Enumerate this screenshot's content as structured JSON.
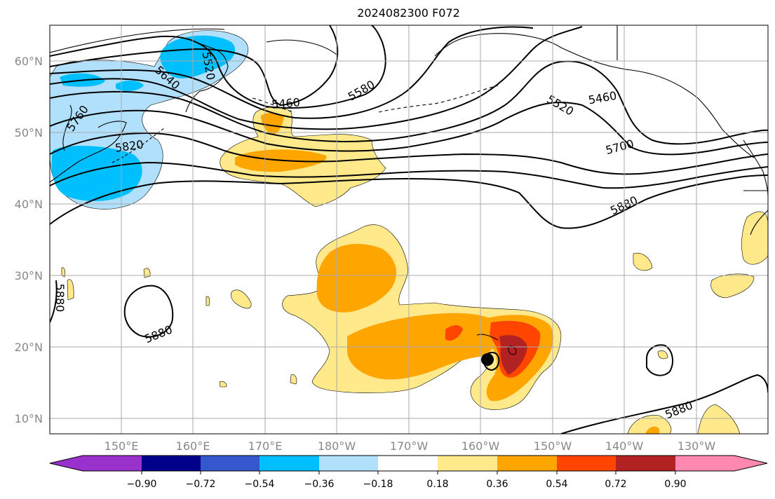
{
  "title": "2024082300 F072",
  "map": {
    "latitude_labels": [
      "60°N",
      "50°N",
      "40°N",
      "30°N",
      "20°N",
      "10°N"
    ],
    "longitude_labels": [
      "150°E",
      "160°E",
      "170°E",
      "180°W",
      "170°W",
      "160°W",
      "150°W",
      "140°W",
      "130°W"
    ],
    "contour_labels": [
      "5520",
      "5640",
      "5760",
      "5820",
      "5460",
      "5580",
      "5520",
      "5460",
      "5700",
      "5880",
      "5880",
      "5880",
      "5880"
    ],
    "grid": true,
    "colors": {
      "contour": "#000000",
      "coast": "#000000",
      "grid": "#aaaaaa"
    }
  },
  "colorbar": {
    "tick_labels": [
      "−0.90",
      "−0.72",
      "−0.54",
      "−0.36",
      "−0.18",
      "0.18",
      "0.36",
      "0.54",
      "0.72",
      "0.90"
    ],
    "colors": [
      "#9932cc",
      "#00008b",
      "#3658cf",
      "#00bfff",
      "#b0e0fc",
      "#ffffff",
      "#ffe98a",
      "#ffa500",
      "#ff4500",
      "#b22222",
      "#ff88b0"
    ]
  }
}
